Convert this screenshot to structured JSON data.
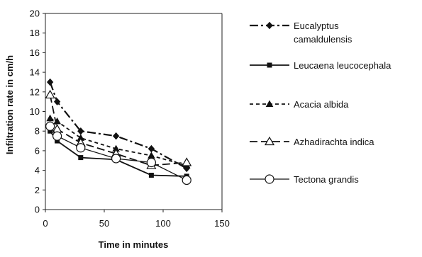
{
  "chart_data": {
    "type": "line",
    "xlabel": "Time in minutes",
    "ylabel": "Infiltration rate in cm/h",
    "xlim": [
      0,
      150
    ],
    "ylim": [
      0,
      20
    ],
    "xticks": [
      0,
      50,
      100,
      150
    ],
    "yticks": [
      0,
      2,
      4,
      6,
      8,
      10,
      12,
      14,
      16,
      18,
      20
    ],
    "grid": false,
    "legend_position": "right",
    "series": [
      {
        "name": "Eucalyptus camaldulensis",
        "legend_lines": [
          "Eucalyptus",
          "camaldulensis"
        ],
        "marker": "filled-diamond",
        "line_style": "long-dash-dot",
        "x": [
          4,
          10,
          30,
          60,
          90,
          120
        ],
        "y": [
          13.0,
          11.0,
          8.0,
          7.5,
          6.2,
          4.2
        ]
      },
      {
        "name": "Leucaena leucocephala",
        "legend_lines": [
          "Leucaena leucocephala"
        ],
        "marker": "filled-square",
        "line_style": "solid",
        "x": [
          4,
          10,
          30,
          60,
          90,
          120
        ],
        "y": [
          8.0,
          7.0,
          5.3,
          5.1,
          3.5,
          3.4
        ]
      },
      {
        "name": "Acacia albida",
        "legend_lines": [
          "Acacia albida"
        ],
        "marker": "filled-triangle",
        "line_style": "short-dash",
        "x": [
          4,
          10,
          30,
          60,
          90,
          120
        ],
        "y": [
          9.3,
          9.0,
          7.3,
          6.2,
          5.5,
          4.5
        ]
      },
      {
        "name": "Azhadirachta indica",
        "legend_lines": [
          "Azhadirachta indica"
        ],
        "marker": "open-triangle",
        "line_style": "long-dash",
        "x": [
          4,
          10,
          30,
          60,
          90,
          120
        ],
        "y": [
          11.7,
          8.2,
          6.8,
          5.7,
          4.5,
          4.8
        ]
      },
      {
        "name": "Tectona grandis",
        "legend_lines": [
          "Tectona grandis"
        ],
        "marker": "open-circle",
        "line_style": "solid-thin",
        "x": [
          4,
          10,
          30,
          60,
          90,
          120
        ],
        "y": [
          8.5,
          7.5,
          6.3,
          5.2,
          4.8,
          3.0
        ]
      }
    ]
  }
}
